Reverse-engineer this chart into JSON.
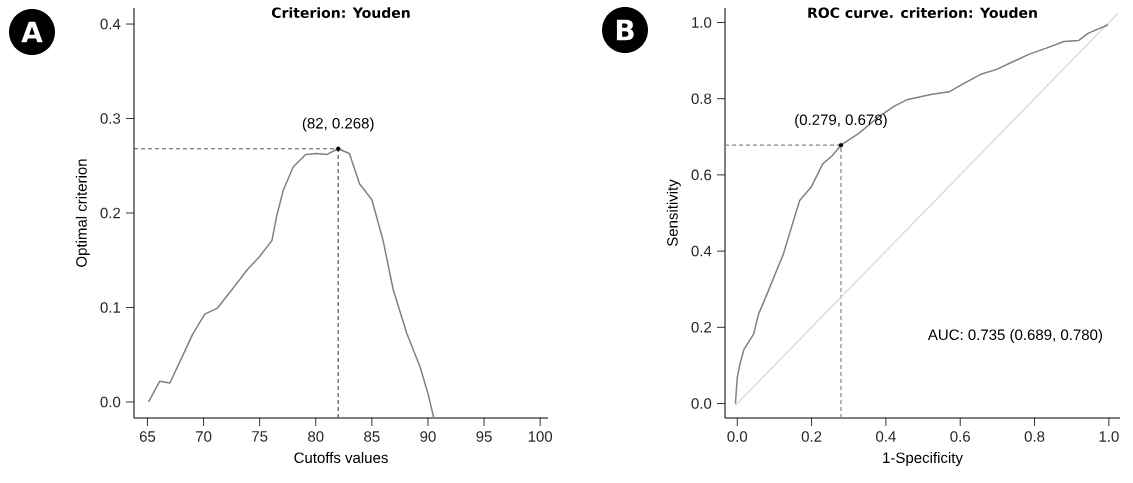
{
  "chart_data": [
    {
      "type": "line",
      "title": "Criterion: Youden",
      "xlabel": "Cutoffs values",
      "ylabel": "Optimal criterion",
      "xlim": [
        63.8,
        100.7
      ],
      "ylim": [
        -0.017,
        0.417
      ],
      "xticks": [
        65,
        70,
        75,
        80,
        85,
        90,
        95,
        100
      ],
      "yticks": [
        {
          "value": 0,
          "label": "0.0"
        },
        {
          "value": 0.1,
          "label": "0.1"
        },
        {
          "value": 0.2,
          "label": "0.2"
        },
        {
          "value": 0.3,
          "label": "0.3"
        },
        {
          "value": 0.4,
          "label": "0.4"
        }
      ],
      "series": [
        {
          "color": "#808080",
          "x": [
            65.1,
            66.1,
            67.0,
            68.1,
            69.0,
            70.1,
            71.2,
            72.4,
            73.9,
            75.0,
            76.1,
            76.5,
            77.1,
            78.0,
            79.1,
            80.1,
            81.0,
            82.0,
            83.0,
            83.9,
            85.0,
            86.0,
            86.9,
            88.1,
            89.3,
            90.0,
            90.5
          ],
          "values": [
            0.0,
            0.022,
            0.02,
            0.048,
            0.071,
            0.093,
            0.099,
            0.117,
            0.14,
            0.154,
            0.171,
            0.196,
            0.224,
            0.249,
            0.262,
            0.263,
            0.262,
            0.268,
            0.263,
            0.231,
            0.214,
            0.171,
            0.119,
            0.073,
            0.037,
            0.009,
            -0.016
          ]
        },
        {
          "type": "scatter",
          "marker": "circle",
          "color": "#000000",
          "x": [
            82
          ],
          "values": [
            0.268
          ]
        }
      ],
      "ref_lines": [
        {
          "axis": "y",
          "value": 0.268,
          "color": "#555555",
          "line_style": "dashed"
        },
        {
          "axis": "x",
          "value": 82,
          "color": "#555555",
          "line_style": "dashed"
        }
      ],
      "annotations": [
        "A",
        {
          "text": "(82, 0.268)",
          "x": 82,
          "y": 0.268
        }
      ]
    },
    {
      "type": "line",
      "title": "ROC curve. criterion: Youden",
      "xlabel": "1-Specificity",
      "ylabel": "Sensitivity",
      "xlim": [
        -0.033,
        1.03
      ],
      "ylim": [
        -0.038,
        1.038
      ],
      "xticks": [
        {
          "value": 0,
          "label": "0.0"
        },
        {
          "value": 0.2,
          "label": "0.2"
        },
        {
          "value": 0.4,
          "label": "0.4"
        },
        {
          "value": 0.6,
          "label": "0.6"
        },
        {
          "value": 0.8,
          "label": "0.8"
        },
        {
          "value": 1,
          "label": "1.0"
        }
      ],
      "yticks": [
        {
          "value": 0,
          "label": "0.0"
        },
        {
          "value": 0.2,
          "label": "0.2"
        },
        {
          "value": 0.4,
          "label": "0.4"
        },
        {
          "value": 0.6,
          "label": "0.6"
        },
        {
          "value": 0.8,
          "label": "0.8"
        },
        {
          "value": 1,
          "label": "1.0"
        }
      ],
      "series": [
        {
          "color": "#dddddd",
          "x": [
            -0.005,
            1.025
          ],
          "values": [
            -0.005,
            1.025
          ]
        },
        {
          "color": "#808080",
          "x": [
            -0.005,
            0.0,
            0.007,
            0.018,
            0.044,
            0.057,
            0.08,
            0.102,
            0.124,
            0.146,
            0.168,
            0.199,
            0.23,
            0.256,
            0.279,
            0.327,
            0.38,
            0.424,
            0.459,
            0.521,
            0.57,
            0.61,
            0.658,
            0.698,
            0.733,
            0.786,
            0.83,
            0.879,
            0.919,
            0.945,
            0.998
          ],
          "values": [
            0.0,
            0.068,
            0.103,
            0.142,
            0.182,
            0.234,
            0.287,
            0.34,
            0.392,
            0.463,
            0.533,
            0.568,
            0.629,
            0.651,
            0.678,
            0.709,
            0.752,
            0.781,
            0.798,
            0.811,
            0.818,
            0.84,
            0.865,
            0.877,
            0.893,
            0.917,
            0.932,
            0.95,
            0.953,
            0.972,
            0.994
          ]
        },
        {
          "type": "scatter",
          "marker": "circle",
          "color": "#000000",
          "x": [
            0.279
          ],
          "values": [
            0.678
          ]
        }
      ],
      "ref_lines": [
        {
          "axis": "y",
          "value": 0.678,
          "color": "#888888",
          "line_style": "dashed"
        },
        {
          "axis": "x",
          "value": 0.279,
          "color": "#888888",
          "line_style": "dashed"
        }
      ],
      "annotations": [
        "B",
        {
          "text": "(0.279, 0.678)",
          "x": 0.279,
          "y": 0.678
        },
        "AUC: 0.735 (0.689, 0.780)"
      ]
    }
  ]
}
